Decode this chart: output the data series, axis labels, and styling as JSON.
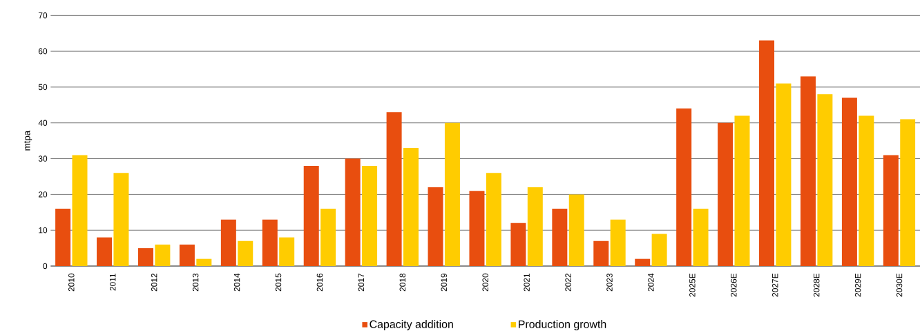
{
  "chart_data": {
    "type": "bar",
    "ylabel": "mtpa",
    "categories": [
      "2010",
      "2011",
      "2012",
      "2013",
      "2014",
      "2015",
      "2016",
      "2017",
      "2018",
      "2019",
      "2020",
      "2021",
      "2022",
      "2023",
      "2024",
      "2025E",
      "2026E",
      "2027E",
      "2028E",
      "2029E",
      "2030E"
    ],
    "series": [
      {
        "name": "Capacity addition",
        "color": "#e84e0f",
        "values": [
          16,
          8,
          5,
          6,
          13,
          13,
          28,
          30,
          43,
          22,
          21,
          12,
          16,
          7,
          2,
          44,
          40,
          63,
          53,
          47,
          31
        ]
      },
      {
        "name": "Production growth",
        "color": "#ffcc00",
        "values": [
          31,
          26,
          6,
          2,
          7,
          8,
          16,
          28,
          33,
          40,
          26,
          22,
          20,
          13,
          9,
          16,
          42,
          51,
          48,
          42,
          41
        ]
      }
    ],
    "ylim": [
      0,
      70
    ],
    "yticks": [
      0,
      10,
      20,
      30,
      40,
      50,
      60,
      70
    ],
    "grid": "y",
    "legend": "bottom"
  }
}
